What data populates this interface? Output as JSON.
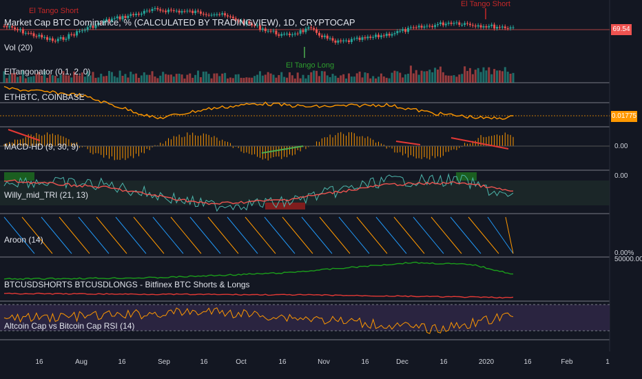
{
  "header": {
    "title": "Market Cap BTC Dominance, % (CALCULATED BY TRADINGVIEW), 1D, CRYPTOCAP",
    "price_tag": "69.54",
    "annotations": {
      "short_top_left": "El Tango Short",
      "short_top_right": "El Tango Short",
      "long": "El Tango Long"
    }
  },
  "panes": {
    "volume": {
      "label": "Vol (20)"
    },
    "eltango": {
      "label": "ElTangonator (0.1, 2, 0)"
    },
    "ethbtc": {
      "label": "ETHBTC, COINBASE",
      "price_tag": "0.01775"
    },
    "macd": {
      "label": "MACD-HD (9, 30, 9)",
      "axis": "0.00"
    },
    "willy": {
      "label": "Willy_mid_TRI (21, 13)",
      "axis": "0.00"
    },
    "aroon": {
      "label": "Aroon (14)",
      "axis": "0.00%"
    },
    "shorts": {
      "label": "BTCUSDSHORTS BTCUSDLONGS - Bitfinex BTC Shorts & Longs",
      "axis": "50000.00"
    },
    "rsi": {
      "label": "Altcoin Cap vs Bitcoin Cap RSI (14)"
    }
  },
  "time_axis": {
    "ticks": [
      "16",
      "Aug",
      "16",
      "Sep",
      "16",
      "Oct",
      "16",
      "Nov",
      "16",
      "Dec",
      "16",
      "2020",
      "16",
      "Feb",
      "1"
    ]
  },
  "colors": {
    "background": "#131722",
    "separator": "#787b86",
    "candle_up": "#26a69a",
    "candle_down": "#ef5350",
    "ethbtc_line": "#ff9800",
    "price_tag_red": "#ef5350",
    "price_tag_orange": "#ff9800",
    "signal_green": "#4caf50",
    "signal_red": "#e53935",
    "willy_teal": "#4db6ac",
    "aroon_blue": "#2196f3",
    "aroon_orange": "#ff9800",
    "shorts_green": "#1b9e1b",
    "longs_red": "#e53935",
    "rsi_band": "#2a2440"
  }
}
